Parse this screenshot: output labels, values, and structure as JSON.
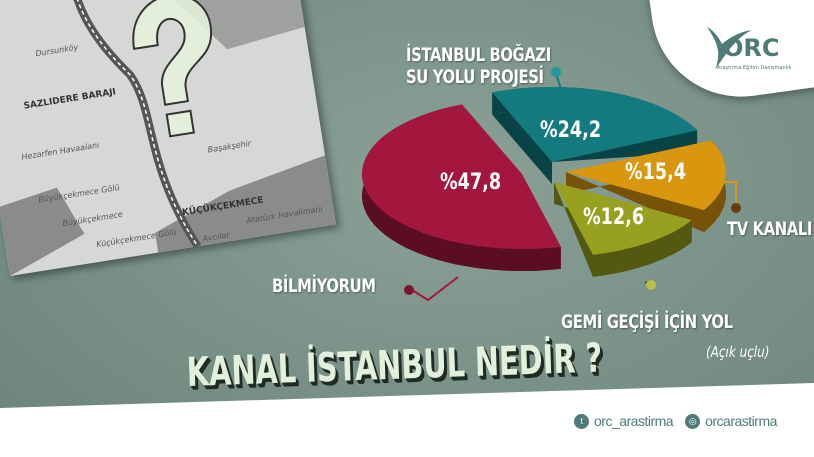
{
  "title": "KANAL İSTANBUL NEDİR ?",
  "note": "(Açık uçlu)",
  "logo": {
    "name": "ORC",
    "subtitle": "Araştırma Eğitim Danışmanlık"
  },
  "social": [
    {
      "icon": "twitter-icon",
      "handle": "orc_arastirma"
    },
    {
      "icon": "instagram-icon",
      "handle": "orcarastirma"
    }
  ],
  "map_labels": [
    "Dursunköy",
    "SAZLIDERE BARAJI",
    "Hezarfen Havaalanı",
    "Başakşehir",
    "Büyükçekmece Gölü",
    "Büyükçekmece",
    "KÜÇÜKÇEKMECE",
    "Küçükçekmece Gölü",
    "Avcılar",
    "Atatürk Havalimanı"
  ],
  "colors": {
    "teal": "#137a80",
    "orange": "#d9960f",
    "olive": "#97a11f",
    "crimson": "#a3173f",
    "background": "#7d958b"
  },
  "chart_data": {
    "type": "pie",
    "style": "3d-exploded",
    "title": "KANAL İSTANBUL NEDİR ?",
    "slices": [
      {
        "label": "İSTANBUL BOĞAZI SU YOLU PROJESİ",
        "value": 24.2,
        "display": "%24,2",
        "color": "#137a80"
      },
      {
        "label": "TV KANALI",
        "value": 15.4,
        "display": "%15,4",
        "color": "#d9960f"
      },
      {
        "label": "GEMİ GEÇİŞİ İÇİN YOL",
        "value": 12.6,
        "display": "%12,6",
        "color": "#97a11f"
      },
      {
        "label": "BİLMİYORUM",
        "value": 47.8,
        "display": "%47,8",
        "color": "#a3173f"
      }
    ]
  }
}
